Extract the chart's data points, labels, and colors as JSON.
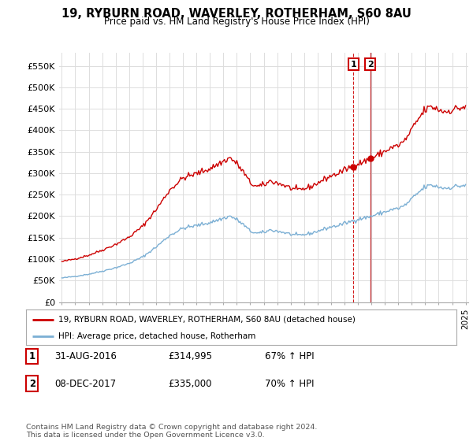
{
  "title": "19, RYBURN ROAD, WAVERLEY, ROTHERHAM, S60 8AU",
  "subtitle": "Price paid vs. HM Land Registry's House Price Index (HPI)",
  "legend_line1": "19, RYBURN ROAD, WAVERLEY, ROTHERHAM, S60 8AU (detached house)",
  "legend_line2": "HPI: Average price, detached house, Rotherham",
  "annotation1_label": "1",
  "annotation1_date": "31-AUG-2016",
  "annotation1_price": "£314,995",
  "annotation1_hpi": "67% ↑ HPI",
  "annotation2_label": "2",
  "annotation2_date": "08-DEC-2017",
  "annotation2_price": "£335,000",
  "annotation2_hpi": "70% ↑ HPI",
  "footer": "Contains HM Land Registry data © Crown copyright and database right 2024.\nThis data is licensed under the Open Government Licence v3.0.",
  "red_color": "#cc0000",
  "blue_color": "#7bafd4",
  "grid_color": "#dddddd",
  "background_color": "#ffffff",
  "ylim": [
    0,
    580000
  ],
  "yticks": [
    0,
    50000,
    100000,
    150000,
    200000,
    250000,
    300000,
    350000,
    400000,
    450000,
    500000,
    550000
  ],
  "ytick_labels": [
    "£0",
    "£50K",
    "£100K",
    "£150K",
    "£200K",
    "£250K",
    "£300K",
    "£350K",
    "£400K",
    "£450K",
    "£500K",
    "£550K"
  ],
  "year_start": 1995,
  "year_end": 2025,
  "sale1_year": 2016.667,
  "sale1_price": 314995,
  "sale2_year": 2017.917,
  "sale2_price": 335000,
  "sale2_highlight": true
}
